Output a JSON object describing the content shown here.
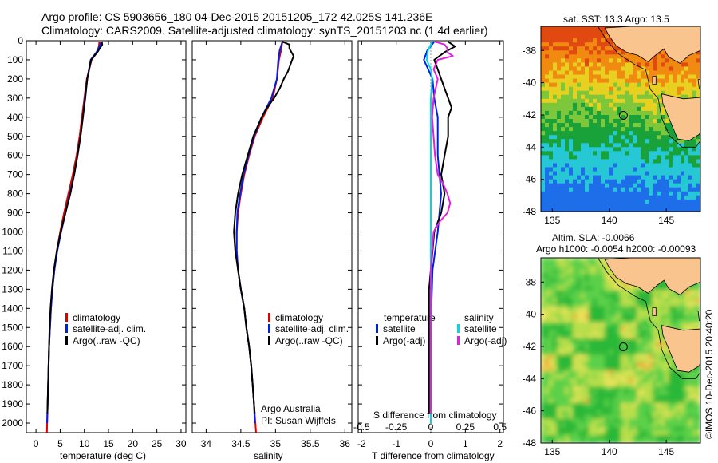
{
  "header": {
    "line1": "Argo profile: CS 5903656_180 04-Dec-2015 20151205_172 42.025S 141.236E",
    "line2": "Climatology: CARS2009. Satellite-adjusted climatology: synTS_20151203.nc (1.4d earlier)"
  },
  "colors": {
    "climatology": "#e00000",
    "satellite": "#0020e0",
    "argo": "#000000",
    "satellite_salinity": "#00d8e8",
    "argo_adj_salinity": "#e020e0"
  },
  "legend_profiles": [
    "climatology",
    "satellite-adj. clim.",
    "Argo(..raw -QC)"
  ],
  "legend_diff": {
    "temperature_title": "temperature",
    "salinity_title": "salinity",
    "temperature_items": [
      "satellite",
      "Argo(-adj)"
    ],
    "salinity_items": [
      "satellite",
      "Argo(-adj)"
    ]
  },
  "annotations": {
    "argo_australia": "Argo Australia",
    "pi": "PI: Susan Wijffels",
    "s_diff_label": "S difference from climatology",
    "sst_title": "sat. SST: 13.3 Argo: 13.5",
    "altim_line1": "Altim. SLA: -0.0066",
    "altim_line2": "Argo h1000: -0.0054 h2000: -0.00093",
    "credit": "©IMOS 10-Dec-2015 20:40:20"
  },
  "chart_data": [
    {
      "type": "line",
      "name": "temperature_profile",
      "xlabel": "temperature (deg C)",
      "ylabel": "",
      "xlim": [
        -2,
        31
      ],
      "ylim": [
        2050,
        0
      ],
      "x_ticks": [
        0,
        5,
        10,
        15,
        20,
        25,
        30
      ],
      "y_ticks": [
        0,
        100,
        200,
        300,
        400,
        500,
        600,
        700,
        800,
        900,
        1000,
        1100,
        1200,
        1300,
        1400,
        1500,
        1600,
        1700,
        1800,
        1900,
        2000
      ],
      "grid": false,
      "series": [
        {
          "name": "climatology",
          "depth": [
            5,
            30,
            60,
            100,
            200,
            300,
            400,
            500,
            600,
            700,
            800,
            900,
            1000,
            1100,
            1200,
            1300,
            1400,
            1500,
            1600,
            1700,
            1800,
            1900,
            2000,
            2050
          ],
          "values": [
            13.1,
            13.0,
            12.6,
            11.5,
            10.5,
            10.0,
            9.5,
            9.0,
            8.4,
            7.6,
            6.7,
            5.8,
            5.0,
            4.3,
            3.8,
            3.4,
            3.1,
            2.9,
            2.7,
            2.6,
            2.5,
            2.4,
            2.3,
            2.25
          ]
        },
        {
          "name": "satellite-adj. clim.",
          "depth": [
            5,
            30,
            60,
            100,
            200,
            300,
            400,
            500,
            600,
            700,
            800,
            900,
            1000,
            1100,
            1200,
            1300,
            1400,
            1500,
            1600,
            1700,
            1800,
            1900,
            2000
          ],
          "values": [
            13.5,
            13.1,
            12.5,
            11.3,
            10.6,
            10.1,
            9.7,
            9.2,
            8.6,
            7.9,
            7.0,
            6.1,
            5.2,
            4.4,
            3.8,
            3.4,
            3.1,
            2.9,
            2.7,
            2.6,
            2.5,
            2.4,
            2.3
          ]
        },
        {
          "name": "Argo(..raw -QC)",
          "depth": [
            5,
            20,
            40,
            60,
            100,
            200,
            300,
            400,
            500,
            600,
            700,
            800,
            900,
            1000,
            1100,
            1200,
            1300,
            1400,
            1500,
            1600,
            1700,
            1800,
            1900,
            1950
          ],
          "values": [
            13.6,
            13.7,
            13.2,
            12.7,
            11.4,
            10.6,
            10.2,
            9.7,
            9.2,
            8.6,
            7.9,
            7.1,
            6.1,
            5.1,
            4.3,
            3.7,
            3.3,
            3.0,
            2.8,
            2.7,
            2.6,
            2.5,
            2.4,
            2.35
          ]
        }
      ]
    },
    {
      "type": "line",
      "name": "salinity_profile",
      "xlabel": "salinity",
      "ylabel": "",
      "xlim": [
        33.8,
        36.1
      ],
      "ylim": [
        2050,
        0
      ],
      "x_ticks": [
        34,
        34.5,
        35,
        35.5,
        36
      ],
      "grid": false,
      "series": [
        {
          "name": "climatology",
          "depth": [
            5,
            50,
            100,
            200,
            300,
            400,
            500,
            600,
            700,
            800,
            900,
            1000,
            1100,
            1200,
            1300,
            1400,
            1500,
            1600,
            1700,
            1800,
            1900,
            2000,
            2050
          ],
          "values": [
            35.1,
            35.08,
            35.05,
            35.02,
            34.96,
            34.82,
            34.7,
            34.62,
            34.55,
            34.5,
            34.46,
            34.44,
            34.44,
            34.46,
            34.5,
            34.55,
            34.58,
            34.62,
            34.65,
            34.67,
            34.69,
            34.71,
            34.72
          ]
        },
        {
          "name": "satellite-adj. clim.",
          "depth": [
            5,
            50,
            100,
            200,
            300,
            400,
            500,
            600,
            700,
            800,
            900,
            1000,
            1100,
            1200,
            1300,
            1400,
            1500,
            1600,
            1700,
            1800,
            1900,
            2000
          ],
          "values": [
            35.1,
            35.06,
            35.04,
            35.02,
            34.94,
            34.8,
            34.69,
            34.61,
            34.54,
            34.49,
            34.45,
            34.44,
            34.44,
            34.46,
            34.5,
            34.55,
            34.58,
            34.62,
            34.65,
            34.67,
            34.69,
            34.7
          ]
        },
        {
          "name": "Argo(..raw -QC)",
          "depth": [
            5,
            20,
            40,
            80,
            120,
            160,
            200,
            250,
            300,
            350,
            400,
            500,
            600,
            700,
            800,
            900,
            1000,
            1100,
            1200,
            1300,
            1400,
            1500,
            1600,
            1700,
            1800,
            1900,
            1950
          ],
          "values": [
            35.1,
            35.2,
            35.2,
            35.26,
            35.22,
            35.18,
            35.12,
            35.06,
            34.98,
            34.88,
            34.8,
            34.68,
            34.6,
            34.52,
            34.46,
            34.42,
            34.4,
            34.42,
            34.46,
            34.5,
            34.55,
            34.58,
            34.62,
            34.65,
            34.67,
            34.69,
            34.7
          ]
        }
      ]
    },
    {
      "type": "line",
      "name": "difference_from_climatology",
      "xlabel": "T difference from climatology",
      "top_axis_label": "S difference from climatology",
      "xlim": [
        -2.1,
        2.1
      ],
      "ylim": [
        2050,
        0
      ],
      "x_ticks": [
        -2,
        -1,
        0,
        1,
        2
      ],
      "top_ticks": [
        -0.5,
        -0.25,
        0,
        0.25,
        0.5
      ],
      "grid": false,
      "series": [
        {
          "name": "temperature satellite",
          "depth": [
            5,
            50,
            100,
            200,
            300,
            400,
            600,
            800,
            1000,
            1200,
            1500,
            2000
          ],
          "values": [
            0.1,
            -0.1,
            -0.2,
            0.05,
            0.1,
            0.2,
            0.2,
            0.3,
            0.2,
            0.05,
            0.0,
            0.0
          ]
        },
        {
          "name": "temperature Argo(-adj)",
          "depth": [
            5,
            30,
            60,
            100,
            150,
            200,
            250,
            300,
            350,
            400,
            500,
            600,
            700,
            800,
            900,
            1000,
            1100,
            1200,
            1300,
            1400,
            1500,
            1600,
            1700,
            1800,
            1900,
            1950
          ],
          "values": [
            0.5,
            0.7,
            0.4,
            0.1,
            0.2,
            0.3,
            0.4,
            0.5,
            0.6,
            0.5,
            0.5,
            0.4,
            0.3,
            0.4,
            0.3,
            0.1,
            0.05,
            0.0,
            -0.05,
            -0.05,
            -0.05,
            -0.05,
            -0.05,
            -0.05,
            -0.05,
            -0.05
          ]
        },
        {
          "name": "salinity satellite",
          "depth": [
            5,
            50,
            100,
            150,
            200,
            300,
            400,
            600,
            800,
            1000,
            1200,
            1500,
            2000
          ],
          "values": [
            0.01,
            -0.02,
            -0.03,
            0.0,
            0.01,
            0.0,
            0.0,
            0.0,
            0.0,
            0.0,
            0.0,
            0.0,
            0.0
          ]
        },
        {
          "name": "salinity Argo(-adj)",
          "depth": [
            5,
            20,
            40,
            60,
            80,
            100,
            150,
            200,
            300,
            400,
            500,
            600,
            700,
            750,
            800,
            850,
            900,
            950,
            1000,
            1100,
            1200,
            1500,
            1950
          ],
          "values": [
            0.03,
            0.1,
            0.12,
            0.12,
            0.16,
            0.05,
            0.02,
            0.05,
            0.02,
            0.01,
            0.02,
            0.03,
            0.05,
            0.09,
            0.12,
            0.14,
            0.12,
            0.06,
            0.02,
            0.01,
            0.0,
            0.0,
            0.0
          ]
        }
      ]
    },
    {
      "type": "heatmap",
      "name": "sst_map",
      "title": "sat. SST: 13.3 Argo: 13.5",
      "xlim": [
        134,
        148
      ],
      "ylim": [
        -48,
        -36.5
      ],
      "x_ticks": [
        135,
        140,
        145
      ],
      "y_ticks": [
        -38,
        -40,
        -42,
        -44,
        -46,
        -48
      ],
      "argo_location": [
        141.236,
        -42.025
      ]
    },
    {
      "type": "heatmap",
      "name": "sla_map",
      "title": "Altim. SLA: -0.0066",
      "xlim": [
        134,
        148
      ],
      "ylim": [
        -48,
        -36.5
      ],
      "x_ticks": [
        135,
        140,
        145
      ],
      "y_ticks": [
        -38,
        -40,
        -42,
        -44,
        -46,
        -48
      ],
      "argo_location": [
        141.236,
        -42.025
      ]
    }
  ]
}
